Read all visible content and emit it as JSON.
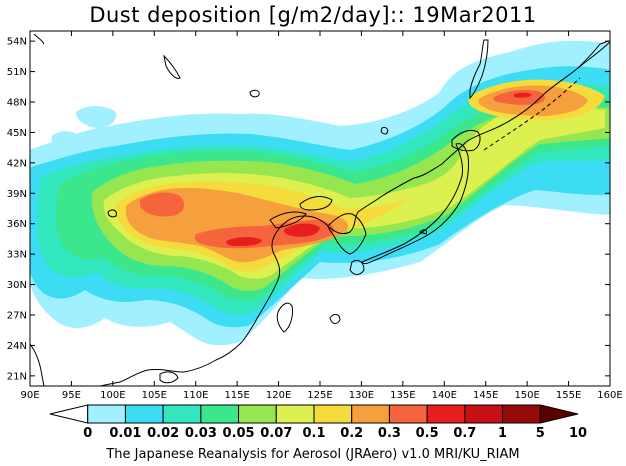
{
  "title": "Dust deposition [g/m2/day]:: 19Mar2011",
  "credit": "The Japanese Reanalysis for Aerosol (JRAero) v1.0 MRI/KU_RIAM",
  "map": {
    "lon_range": [
      90,
      160
    ],
    "lat_range": [
      20,
      55
    ],
    "lon_ticks": [
      "90E",
      "95E",
      "100E",
      "105E",
      "110E",
      "115E",
      "120E",
      "125E",
      "130E",
      "135E",
      "140E",
      "145E",
      "150E",
      "155E",
      "160E"
    ],
    "lat_ticks": [
      "54N",
      "51N",
      "48N",
      "45N",
      "42N",
      "39N",
      "36N",
      "33N",
      "30N",
      "27N",
      "24N",
      "21N"
    ]
  },
  "legend": {
    "labels": [
      "0",
      "0.01",
      "0.02",
      "0.03",
      "0.05",
      "0.07",
      "0.1",
      "0.2",
      "0.3",
      "0.5",
      "0.7",
      "1",
      "5",
      "10"
    ],
    "colors": [
      "#ffffff",
      "#a0f0ff",
      "#3cdcf5",
      "#32e6be",
      "#3ce68c",
      "#96e650",
      "#dcf050",
      "#f5dc3c",
      "#f5a03c",
      "#f5643c",
      "#e61e1e",
      "#c80f14",
      "#960a0a",
      "#5a0000"
    ]
  },
  "colors": {
    "level_01": "#a0f0ff",
    "level_02": "#3cdcf5",
    "level_03": "#32e6be",
    "level_05": "#3ce68c",
    "level_07": "#96e650",
    "level_1": "#dcf050",
    "level_2": "#f5dc3c",
    "level_3": "#f5a03c",
    "level_5": "#f5643c",
    "level_7": "#e61e1e"
  }
}
